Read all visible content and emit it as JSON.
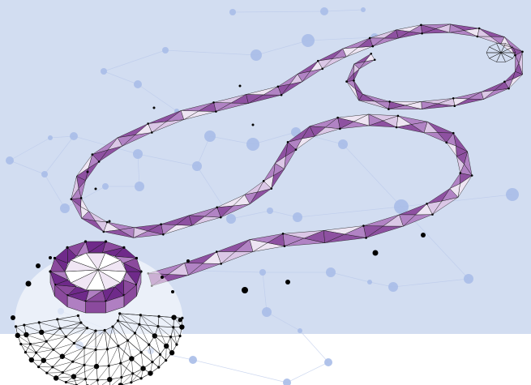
{
  "illustration": {
    "subject": "stethoscope-icon",
    "style": "low-poly-wireframe",
    "colors": {
      "background_panel": "#d2ddf1",
      "background_lower": "#ffffff",
      "network_node": "#a9bde8",
      "network_line": "#b9c8ea",
      "tube_dark": "#8b4a9d",
      "tube_mid": "#b07fc2",
      "tube_light": "#dcc6e6",
      "tube_pale": "#f0e6f4",
      "chestpiece_rim": "#6f2a8a",
      "wire": "#1a1a1a",
      "vertex": "#000000"
    }
  }
}
